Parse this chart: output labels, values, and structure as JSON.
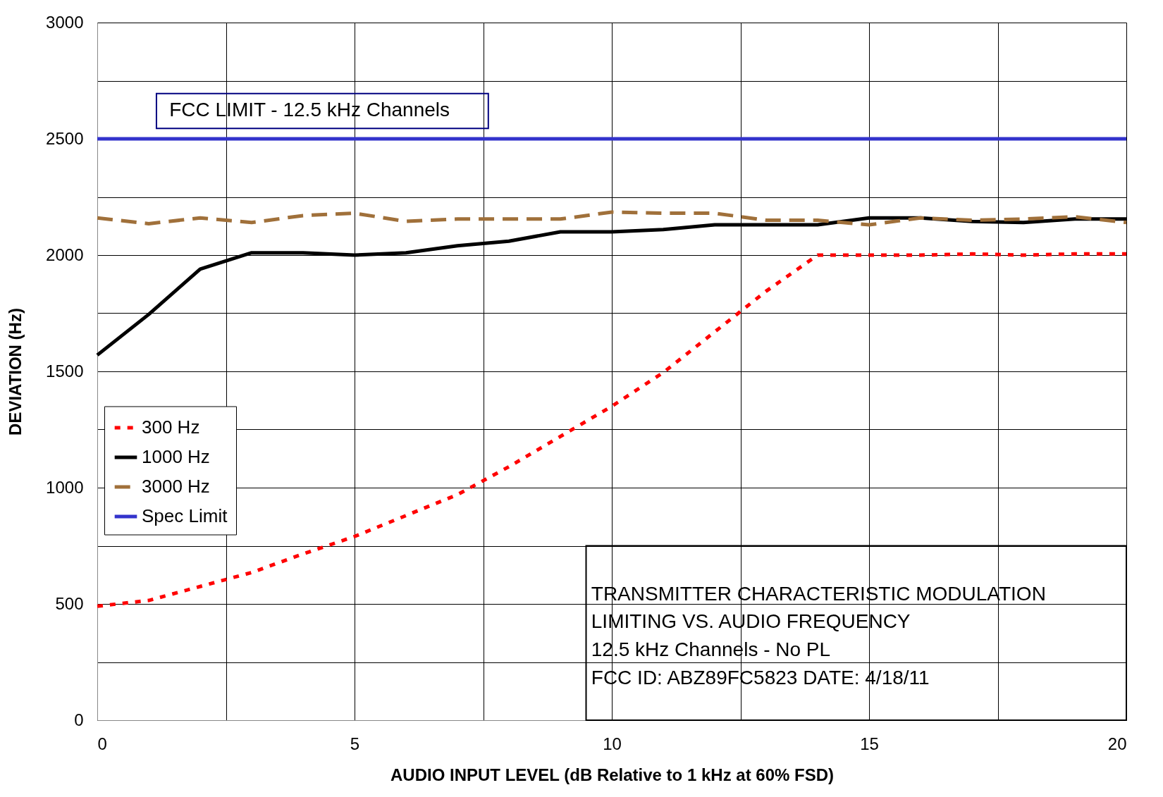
{
  "chart_data": {
    "type": "line",
    "xlabel": "AUDIO INPUT LEVEL (dB Relative to 1 kHz at 60% FSD)",
    "ylabel": "DEVIATION (Hz)",
    "x": [
      0,
      1,
      2,
      3,
      4,
      5,
      6,
      7,
      8,
      9,
      10,
      11,
      12,
      13,
      14,
      15,
      16,
      17,
      18,
      19,
      20
    ],
    "series": [
      {
        "name": "300 Hz",
        "color": "#ff0000",
        "line_style": "dotted",
        "values": [
          490,
          515,
          575,
          635,
          715,
          790,
          880,
          970,
          1090,
          1220,
          1350,
          1495,
          1670,
          1845,
          2000,
          2000,
          2000,
          2005,
          2000,
          2005,
          2005
        ]
      },
      {
        "name": "1000 Hz",
        "color": "#000000",
        "line_style": "solid",
        "values": [
          1570,
          1745,
          1940,
          2010,
          2010,
          2000,
          2010,
          2040,
          2060,
          2100,
          2100,
          2110,
          2130,
          2130,
          2130,
          2160,
          2160,
          2145,
          2140,
          2155,
          2155
        ]
      },
      {
        "name": "3000 Hz",
        "color": "#a0703a",
        "line_style": "dashed",
        "values": [
          2160,
          2135,
          2160,
          2140,
          2170,
          2180,
          2145,
          2155,
          2155,
          2155,
          2185,
          2180,
          2180,
          2150,
          2150,
          2130,
          2160,
          2150,
          2155,
          2165,
          2140
        ]
      },
      {
        "name": "Spec Limit",
        "color": "#3333cc",
        "line_style": "solid",
        "x": [
          0,
          20
        ],
        "values": [
          2500,
          2500
        ]
      }
    ],
    "xlim": [
      0,
      20
    ],
    "ylim": [
      0,
      3000
    ],
    "xticks": [
      0,
      {
        "value": 2.5,
        "label": null
      },
      5,
      {
        "value": 7.5,
        "label": null
      },
      10,
      {
        "value": 12.5,
        "label": null
      },
      15,
      {
        "value": 17.5,
        "label": null
      },
      20
    ],
    "yticks": [
      0,
      {
        "value": 250,
        "label": null
      },
      500,
      {
        "value": 750,
        "label": null
      },
      1000,
      {
        "value": 1250,
        "label": null
      },
      1500,
      {
        "value": 1750,
        "label": null
      },
      2000,
      {
        "value": 2250,
        "label": null
      },
      2500,
      {
        "value": 2750,
        "label": null
      },
      3000
    ],
    "grid": true,
    "legend": "left",
    "marker": "none",
    "annotations": [
      "FCC LIMIT - 12.5 kHz Channels",
      "TRANSMITTER CHARACTERISTIC MODULATION",
      "LIMITING VS. AUDIO FREQUENCY",
      "12.5 kHz Channels - No PL",
      "FCC ID:   ABZ89FC5823    DATE:  4/18/11"
    ]
  }
}
